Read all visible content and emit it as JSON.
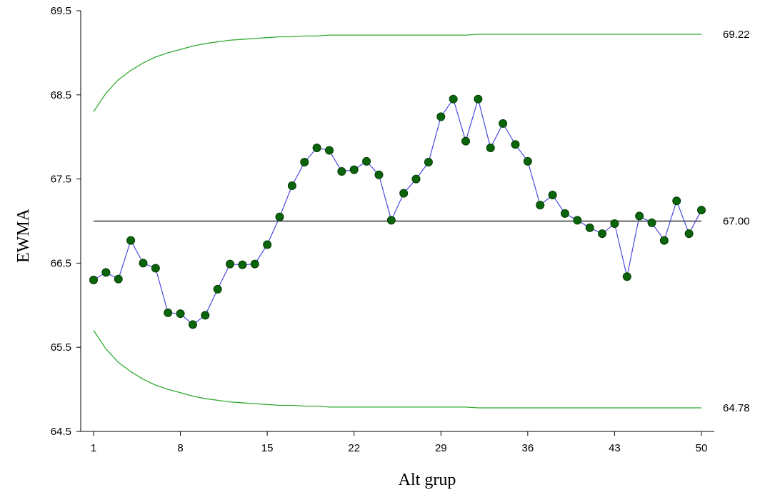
{
  "chart_data": {
    "type": "line",
    "title": "",
    "xlabel": "Alt grup",
    "ylabel": "EWMA",
    "xlim": [
      1,
      50
    ],
    "ylim": [
      64.5,
      69.5
    ],
    "x_ticks": [
      1,
      8,
      15,
      22,
      29,
      36,
      43,
      50
    ],
    "x_tick_labels": [
      "1",
      "8",
      "15",
      "22",
      "29",
      "36",
      "43",
      "50"
    ],
    "y_ticks": [
      64.5,
      65.5,
      66.5,
      67.5,
      68.5,
      69.5
    ],
    "y_tick_labels": [
      "64.5",
      "65.5",
      "66.5",
      "67.5",
      "68.5",
      "69.5"
    ],
    "grid": false,
    "limit_labels": {
      "ucl": "69.22",
      "center": "67.00",
      "lcl": "64.78"
    },
    "center_line": 67.0,
    "colors": {
      "ewma_line": "#4a4adf",
      "ewma_marker": "#0a640a",
      "limits": "#33aa33",
      "center": "#000000"
    },
    "series": [
      {
        "x": [
          1,
          2,
          3,
          4,
          5,
          6,
          7,
          8,
          9,
          10,
          11,
          12,
          13,
          14,
          15,
          16,
          17,
          18,
          19,
          20,
          21,
          22,
          23,
          24,
          25,
          26,
          27,
          28,
          29,
          30,
          31,
          32,
          33,
          34,
          35,
          36,
          37,
          38,
          39,
          40,
          41,
          42,
          43,
          44,
          45,
          46,
          47,
          48,
          49,
          50
        ],
        "values": [
          66.3,
          66.39,
          66.31,
          66.77,
          66.5,
          66.44,
          65.91,
          65.9,
          65.77,
          65.88,
          66.19,
          66.49,
          66.48,
          66.49,
          66.72,
          67.05,
          67.42,
          67.7,
          67.87,
          67.84,
          67.59,
          67.61,
          67.71,
          67.55,
          67.01,
          67.33,
          67.5,
          67.7,
          68.24,
          68.45,
          67.95,
          68.45,
          67.87,
          68.16,
          67.91,
          67.71,
          67.19,
          67.31,
          67.09,
          67.01,
          66.92,
          66.85,
          66.97,
          66.34,
          67.06,
          66.98,
          66.77,
          67.24,
          66.85,
          67.13
        ]
      },
      {
        "x": [
          1,
          2,
          3,
          4,
          5,
          6,
          7,
          8,
          9,
          10,
          11,
          12,
          13,
          14,
          15,
          16,
          17,
          18,
          19,
          20,
          21,
          22,
          23,
          24,
          25,
          26,
          27,
          28,
          29,
          30,
          31,
          32,
          33,
          34,
          35,
          36,
          37,
          38,
          39,
          40,
          41,
          42,
          43,
          44,
          45,
          46,
          47,
          48,
          49,
          50
        ],
        "values": [
          68.3,
          68.52,
          68.68,
          68.79,
          68.88,
          68.95,
          69.0,
          69.04,
          69.08,
          69.11,
          69.13,
          69.15,
          69.16,
          69.17,
          69.18,
          69.19,
          69.19,
          69.2,
          69.2,
          69.21,
          69.21,
          69.21,
          69.21,
          69.21,
          69.21,
          69.21,
          69.21,
          69.21,
          69.21,
          69.21,
          69.21,
          69.22,
          69.22,
          69.22,
          69.22,
          69.22,
          69.22,
          69.22,
          69.22,
          69.22,
          69.22,
          69.22,
          69.22,
          69.22,
          69.22,
          69.22,
          69.22,
          69.22,
          69.22,
          69.22
        ]
      },
      {
        "x": [
          1,
          2,
          3,
          4,
          5,
          6,
          7,
          8,
          9,
          10,
          11,
          12,
          13,
          14,
          15,
          16,
          17,
          18,
          19,
          20,
          21,
          22,
          23,
          24,
          25,
          26,
          27,
          28,
          29,
          30,
          31,
          32,
          33,
          34,
          35,
          36,
          37,
          38,
          39,
          40,
          41,
          42,
          43,
          44,
          45,
          46,
          47,
          48,
          49,
          50
        ],
        "values": [
          65.7,
          65.48,
          65.32,
          65.21,
          65.12,
          65.05,
          65.0,
          64.96,
          64.92,
          64.89,
          64.87,
          64.85,
          64.84,
          64.83,
          64.82,
          64.81,
          64.81,
          64.8,
          64.8,
          64.79,
          64.79,
          64.79,
          64.79,
          64.79,
          64.79,
          64.79,
          64.79,
          64.79,
          64.79,
          64.79,
          64.79,
          64.78,
          64.78,
          64.78,
          64.78,
          64.78,
          64.78,
          64.78,
          64.78,
          64.78,
          64.78,
          64.78,
          64.78,
          64.78,
          64.78,
          64.78,
          64.78,
          64.78,
          64.78,
          64.78
        ]
      }
    ]
  }
}
